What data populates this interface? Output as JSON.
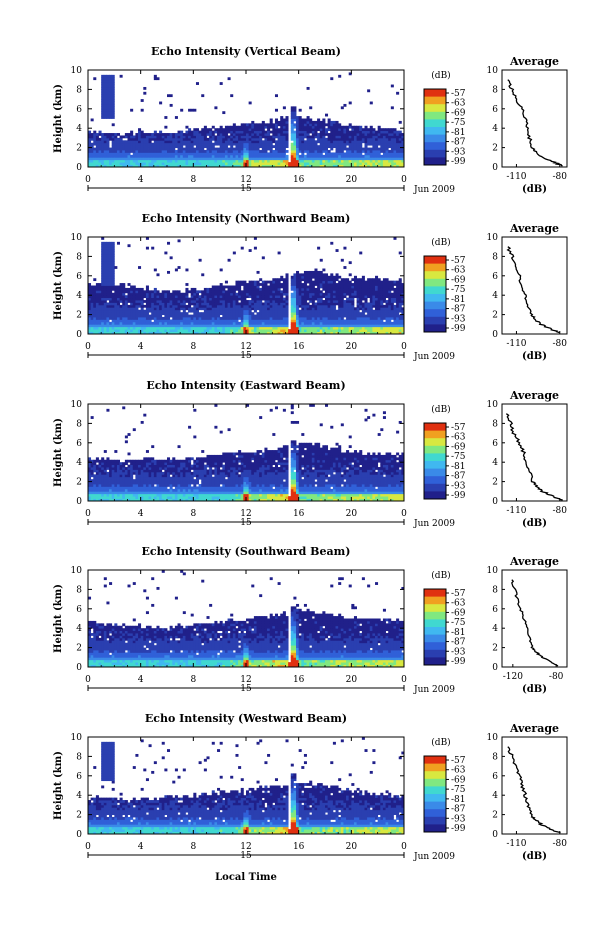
{
  "figure": {
    "xlabel": "Local Time",
    "date_label": "Jun 2009",
    "day_label": "15",
    "colorbar_unit": "(dB)",
    "colorbar_ticks": [
      "-57",
      "-63",
      "-69",
      "-75",
      "-81",
      "-87",
      "-93",
      "-99"
    ],
    "colors": {
      "scale": [
        "#20208a",
        "#2a3fb0",
        "#3060d8",
        "#3a8ae8",
        "#40b8f0",
        "#40d8d0",
        "#80e880",
        "#d8e840",
        "#f0a020",
        "#e03010"
      ],
      "profile_line": "#000000"
    }
  },
  "chart_data": [
    {
      "type": "heatmap",
      "title": "Echo Intensity (Vertical Beam)",
      "xlabel": "",
      "ylabel": "Height (km)",
      "x_ticks": [
        "0",
        "4",
        "8",
        "12",
        "16",
        "20",
        "0"
      ],
      "y_ticks": [
        "0",
        "2",
        "4",
        "6",
        "8",
        "10"
      ],
      "xlim": [
        0,
        24
      ],
      "ylim": [
        0,
        10
      ],
      "colorbar_label": "(dB)",
      "colorbar_range": [
        -99,
        -57
      ],
      "echo_top_km_by_hour": [
        3.6,
        3.7,
        3.4,
        3.5,
        3.8,
        3.6,
        3.5,
        3.7,
        3.9,
        4.0,
        4.1,
        4.3,
        4.5,
        4.6,
        4.8,
        5.0,
        5.3,
        5.0,
        4.8,
        4.6,
        4.4,
        4.2,
        4.0,
        3.9,
        3.8
      ]
    },
    {
      "type": "line",
      "title": "Average",
      "xlabel": "(dB)",
      "ylabel": "",
      "x_ticks": [
        "-110",
        "-80"
      ],
      "y_ticks": [
        "0",
        "2",
        "4",
        "6",
        "8",
        "10"
      ],
      "xlim": [
        -120,
        -75
      ],
      "ylim": [
        0,
        10
      ],
      "profile": {
        "height_km": [
          0.1,
          0.5,
          1.0,
          1.5,
          2.0,
          3.0,
          4.0,
          5.0,
          6.0,
          7.0,
          8.0,
          9.0
        ],
        "db": [
          -78,
          -84,
          -92,
          -96,
          -99,
          -101,
          -102,
          -104,
          -106,
          -110,
          -113,
          -116
        ]
      }
    },
    {
      "type": "heatmap",
      "title": "Echo Intensity (Northward Beam)",
      "xlabel": "",
      "ylabel": "Height (km)",
      "x_ticks": [
        "0",
        "4",
        "8",
        "12",
        "16",
        "20",
        "0"
      ],
      "y_ticks": [
        "0",
        "2",
        "4",
        "6",
        "8",
        "10"
      ],
      "xlim": [
        0,
        24
      ],
      "ylim": [
        0,
        10
      ],
      "colorbar_label": "(dB)",
      "colorbar_range": [
        -99,
        -57
      ],
      "echo_top_km_by_hour": [
        5.0,
        5.2,
        5.1,
        4.9,
        4.8,
        4.6,
        4.5,
        4.4,
        4.6,
        4.8,
        5.0,
        5.2,
        5.4,
        5.6,
        5.8,
        6.0,
        6.4,
        6.6,
        6.3,
        6.0,
        5.8,
        5.7,
        5.6,
        5.5,
        5.5
      ]
    },
    {
      "type": "line",
      "title": "Average",
      "xlabel": "(dB)",
      "ylabel": "",
      "x_ticks": [
        "-110",
        "-80"
      ],
      "y_ticks": [
        "0",
        "2",
        "4",
        "6",
        "8",
        "10"
      ],
      "xlim": [
        -120,
        -75
      ],
      "ylim": [
        0,
        10
      ],
      "profile": {
        "height_km": [
          0.1,
          0.5,
          1.0,
          1.5,
          2.0,
          3.0,
          4.0,
          5.0,
          6.0,
          7.0,
          8.0,
          9.0
        ],
        "db": [
          -80,
          -86,
          -93,
          -97,
          -100,
          -102,
          -104,
          -106,
          -108,
          -111,
          -113,
          -116
        ]
      }
    },
    {
      "type": "heatmap",
      "title": "Echo Intensity (Eastward Beam)",
      "xlabel": "",
      "ylabel": "Height (km)",
      "x_ticks": [
        "0",
        "4",
        "8",
        "12",
        "16",
        "20",
        "0"
      ],
      "y_ticks": [
        "0",
        "2",
        "4",
        "6",
        "8",
        "10"
      ],
      "xlim": [
        0,
        24
      ],
      "ylim": [
        0,
        10
      ],
      "colorbar_label": "(dB)",
      "colorbar_range": [
        -99,
        -57
      ],
      "echo_top_km_by_hour": [
        4.5,
        4.4,
        4.3,
        4.2,
        4.3,
        4.4,
        4.2,
        4.3,
        4.5,
        4.7,
        4.9,
        5.0,
        5.1,
        5.2,
        5.4,
        5.6,
        6.0,
        5.8,
        5.6,
        5.4,
        5.2,
        5.0,
        4.9,
        4.8,
        4.7
      ]
    },
    {
      "type": "line",
      "title": "Average",
      "xlabel": "(dB)",
      "ylabel": "",
      "x_ticks": [
        "-110",
        "-80"
      ],
      "y_ticks": [
        "0",
        "2",
        "4",
        "6",
        "8",
        "10"
      ],
      "xlim": [
        -120,
        -75
      ],
      "ylim": [
        0,
        10
      ],
      "profile": {
        "height_km": [
          0.1,
          0.5,
          1.0,
          1.5,
          2.0,
          3.0,
          4.0,
          5.0,
          6.0,
          7.0,
          8.0,
          9.0
        ],
        "db": [
          -79,
          -85,
          -92,
          -96,
          -99,
          -101,
          -103,
          -105,
          -108,
          -112,
          -114,
          -117
        ]
      }
    },
    {
      "type": "heatmap",
      "title": "Echo Intensity (Southward Beam)",
      "xlabel": "",
      "ylabel": "Height (km)",
      "x_ticks": [
        "0",
        "4",
        "8",
        "12",
        "16",
        "20",
        "0"
      ],
      "y_ticks": [
        "0",
        "2",
        "4",
        "6",
        "8",
        "10"
      ],
      "xlim": [
        0,
        24
      ],
      "ylim": [
        0,
        10
      ],
      "colorbar_label": "(dB)",
      "colorbar_range": [
        -99,
        -57
      ],
      "echo_top_km_by_hour": [
        4.6,
        4.5,
        4.4,
        4.3,
        4.2,
        4.2,
        4.1,
        4.2,
        4.4,
        4.6,
        4.7,
        4.8,
        4.9,
        5.1,
        5.3,
        5.6,
        6.0,
        5.8,
        5.5,
        5.3,
        5.1,
        5.0,
        4.9,
        4.8,
        4.7
      ]
    },
    {
      "type": "line",
      "title": "Average",
      "xlabel": "(dB)",
      "ylabel": "",
      "x_ticks": [
        "-120",
        "-80"
      ],
      "y_ticks": [
        "0",
        "2",
        "4",
        "6",
        "8",
        "10"
      ],
      "xlim": [
        -130,
        -70
      ],
      "ylim": [
        0,
        10
      ],
      "profile": {
        "height_km": [
          0.1,
          0.5,
          1.0,
          1.5,
          2.0,
          3.0,
          4.0,
          5.0,
          6.0,
          7.0,
          8.0,
          9.0
        ],
        "db": [
          -78,
          -85,
          -93,
          -98,
          -102,
          -105,
          -107,
          -110,
          -113,
          -116,
          -118,
          -121
        ]
      }
    },
    {
      "type": "heatmap",
      "title": "Echo Intensity (Westward Beam)",
      "xlabel": "Local Time",
      "ylabel": "Height (km)",
      "x_ticks": [
        "0",
        "4",
        "8",
        "12",
        "16",
        "20",
        "0"
      ],
      "y_ticks": [
        "0",
        "2",
        "4",
        "6",
        "8",
        "10"
      ],
      "xlim": [
        0,
        24
      ],
      "ylim": [
        0,
        10
      ],
      "colorbar_label": "(dB)",
      "colorbar_range": [
        -99,
        -57
      ],
      "echo_top_km_by_hour": [
        3.6,
        3.8,
        3.7,
        3.6,
        3.5,
        3.7,
        3.8,
        3.9,
        4.0,
        4.1,
        4.3,
        4.4,
        4.5,
        4.7,
        4.9,
        5.1,
        5.4,
        5.2,
        5.0,
        4.8,
        4.5,
        4.3,
        4.1,
        4.0,
        3.9
      ]
    },
    {
      "type": "line",
      "title": "Average",
      "xlabel": "(dB)",
      "ylabel": "",
      "x_ticks": [
        "-110",
        "-80"
      ],
      "y_ticks": [
        "0",
        "2",
        "4",
        "6",
        "8",
        "10"
      ],
      "xlim": [
        -120,
        -75
      ],
      "ylim": [
        0,
        10
      ],
      "profile": {
        "height_km": [
          0.1,
          0.5,
          1.0,
          1.5,
          2.0,
          3.0,
          4.0,
          5.0,
          6.0,
          7.0,
          8.0,
          9.0
        ],
        "db": [
          -80,
          -86,
          -93,
          -97,
          -100,
          -102,
          -104,
          -106,
          -108,
          -111,
          -113,
          -116
        ]
      }
    }
  ]
}
